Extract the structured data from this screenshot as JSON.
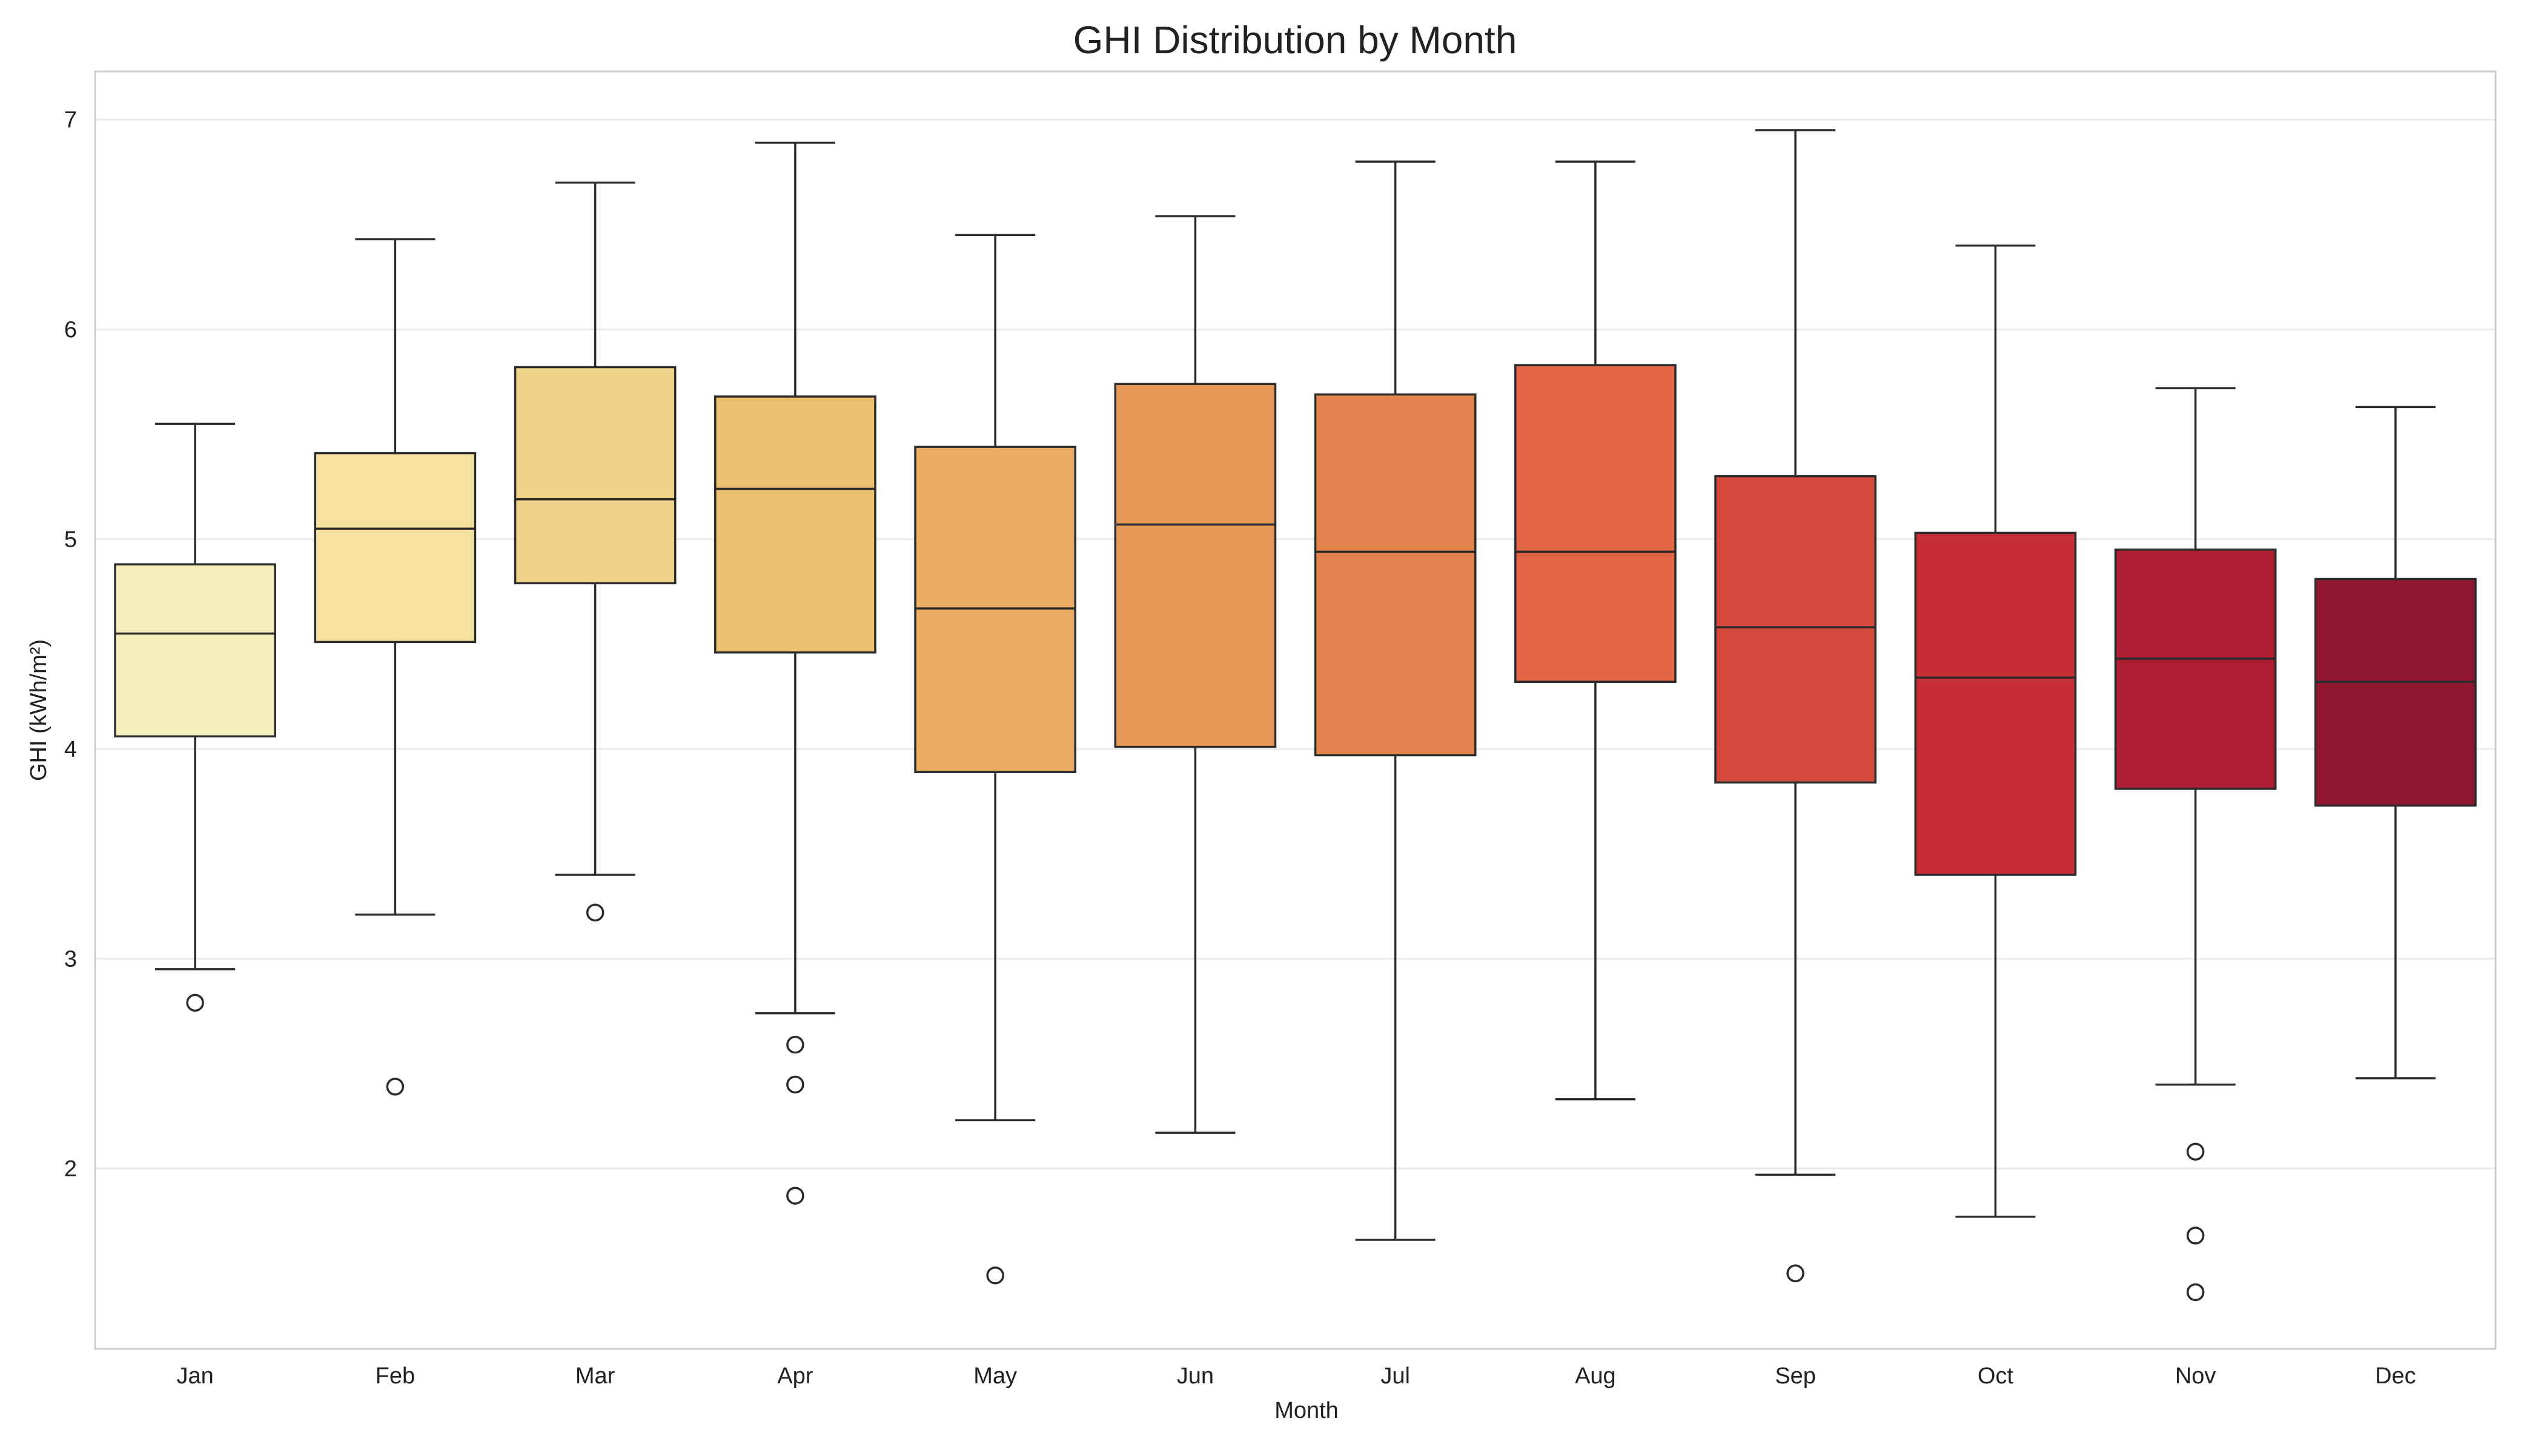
{
  "chart_data": {
    "type": "boxplot",
    "title": "GHI Distribution by Month",
    "xlabel": "Month",
    "ylabel": "GHI (kWh/m²)",
    "ylim": [
      1.14,
      7.23
    ],
    "yticks": [
      2,
      3,
      4,
      5,
      6,
      7
    ],
    "grid": "y",
    "legend": "none",
    "categories": [
      "Jan",
      "Feb",
      "Mar",
      "Apr",
      "May",
      "Jun",
      "Jul",
      "Aug",
      "Sep",
      "Oct",
      "Nov",
      "Dec"
    ],
    "boxes": [
      {
        "category": "Jan",
        "whisker_low": 2.95,
        "q1": 4.06,
        "median": 4.55,
        "q3": 4.88,
        "whisker_high": 5.55,
        "outliers": [
          2.79
        ],
        "color": "#f6eebd"
      },
      {
        "category": "Feb",
        "whisker_low": 3.21,
        "q1": 4.51,
        "median": 5.05,
        "q3": 5.41,
        "whisker_high": 6.43,
        "outliers": [
          2.39
        ],
        "color": "#f5e2a0"
      },
      {
        "category": "Mar",
        "whisker_low": 3.4,
        "q1": 4.79,
        "median": 5.19,
        "q3": 5.82,
        "whisker_high": 6.7,
        "outliers": [
          3.22
        ],
        "color": "#efd38a"
      },
      {
        "category": "Apr",
        "whisker_low": 2.74,
        "q1": 4.46,
        "median": 5.24,
        "q3": 5.68,
        "whisker_high": 6.89,
        "outliers": [
          2.59,
          2.4,
          1.87
        ],
        "color": "#ecc06f"
      },
      {
        "category": "May",
        "whisker_low": 2.23,
        "q1": 3.89,
        "median": 4.67,
        "q3": 5.44,
        "whisker_high": 6.45,
        "outliers": [
          1.49
        ],
        "color": "#e8ac62"
      },
      {
        "category": "Jun",
        "whisker_low": 2.17,
        "q1": 4.01,
        "median": 5.07,
        "q3": 5.74,
        "whisker_high": 6.54,
        "outliers": [],
        "color": "#e69856"
      },
      {
        "category": "Jul",
        "whisker_low": 1.66,
        "q1": 3.97,
        "median": 4.94,
        "q3": 5.69,
        "whisker_high": 6.8,
        "outliers": [],
        "color": "#e4834d"
      },
      {
        "category": "Aug",
        "whisker_low": 2.33,
        "q1": 4.32,
        "median": 4.94,
        "q3": 5.83,
        "whisker_high": 6.8,
        "outliers": [],
        "color": "#e26645"
      },
      {
        "category": "Sep",
        "whisker_low": 1.97,
        "q1": 3.84,
        "median": 4.58,
        "q3": 5.3,
        "whisker_high": 6.95,
        "outliers": [
          1.5
        ],
        "color": "#d6493d"
      },
      {
        "category": "Oct",
        "whisker_low": 1.77,
        "q1": 3.4,
        "median": 4.34,
        "q3": 5.03,
        "whisker_high": 6.4,
        "outliers": [],
        "color": "#c62f35"
      },
      {
        "category": "Nov",
        "whisker_low": 2.4,
        "q1": 3.81,
        "median": 4.43,
        "q3": 4.95,
        "whisker_high": 5.72,
        "outliers": [
          2.08,
          1.68,
          1.41
        ],
        "color": "#ae1e33"
      },
      {
        "category": "Dec",
        "whisker_low": 2.43,
        "q1": 3.73,
        "median": 4.32,
        "q3": 4.81,
        "whisker_high": 5.63,
        "outliers": [],
        "color": "#901631"
      }
    ]
  }
}
